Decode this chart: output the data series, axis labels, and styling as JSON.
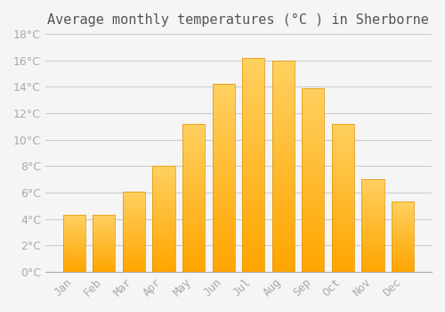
{
  "title": "Average monthly temperatures (°C ) in Sherborne",
  "months": [
    "Jan",
    "Feb",
    "Mar",
    "Apr",
    "May",
    "Jun",
    "Jul",
    "Aug",
    "Sep",
    "Oct",
    "Nov",
    "Dec"
  ],
  "values": [
    4.3,
    4.3,
    6.1,
    8.0,
    11.2,
    14.2,
    16.2,
    16.0,
    13.9,
    11.2,
    7.0,
    5.3
  ],
  "bar_color_bottom": "#FFA500",
  "bar_color_top": "#FFD060",
  "ylim": [
    0,
    18
  ],
  "yticks": [
    0,
    2,
    4,
    6,
    8,
    10,
    12,
    14,
    16,
    18
  ],
  "background_color": "#F5F5F5",
  "grid_color": "#CCCCCC",
  "title_fontsize": 11,
  "tick_fontsize": 9,
  "tick_color": "#AAAAAA",
  "bar_edge_color": "#E09000"
}
